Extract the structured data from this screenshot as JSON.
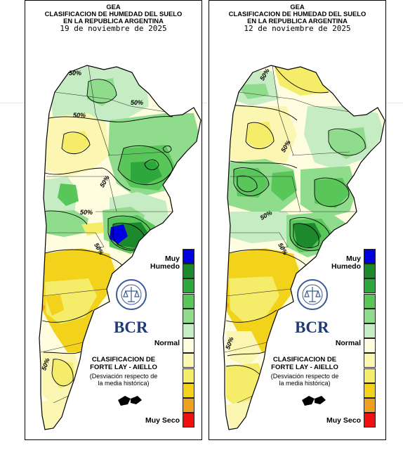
{
  "page": {
    "background": "#ffffff"
  },
  "panels": [
    {
      "id": "left",
      "title": "GEA",
      "line1": "CLASIFICACION DE HUMEDAD DEL SUELO",
      "line2": "EN LA REPUBLICA ARGENTINA",
      "date": "19 de noviembre de 2025",
      "contour_labels": [
        "50%",
        "50%",
        "50%",
        "50%",
        "50%",
        "50%",
        "50%"
      ]
    },
    {
      "id": "right",
      "title": "GEA",
      "line1": "CLASIFICACION DE HUMEDAD DEL SUELO",
      "line2": "EN LA REPUBLICA ARGENTINA",
      "date": "12 de noviembre de 2025",
      "contour_labels": [
        "50%",
        "50%",
        "50%",
        "50%",
        "50%"
      ]
    }
  ],
  "legend": {
    "top_label": "Muy Humedo",
    "middle_label": "Normal",
    "bottom_label": "Muy Seco",
    "classes": [
      "#0000e0",
      "#1c8a2c",
      "#2ea83c",
      "#59c65a",
      "#8fdc8c",
      "#c6ecc4",
      "#fffde0",
      "#fbf6b2",
      "#f5ec6a",
      "#f2d21a",
      "#f0a020",
      "#f01010"
    ]
  },
  "brand": {
    "logo_text": "BCR",
    "seal_text": "BOLSA DE COMERCIO DE ROSARIO"
  },
  "classification": {
    "line1": "CLASIFICACION DE",
    "line2": "FORTE LAY - AIELLO",
    "note1": "(Desviación respecto de",
    "note2": "la media histórica)"
  }
}
